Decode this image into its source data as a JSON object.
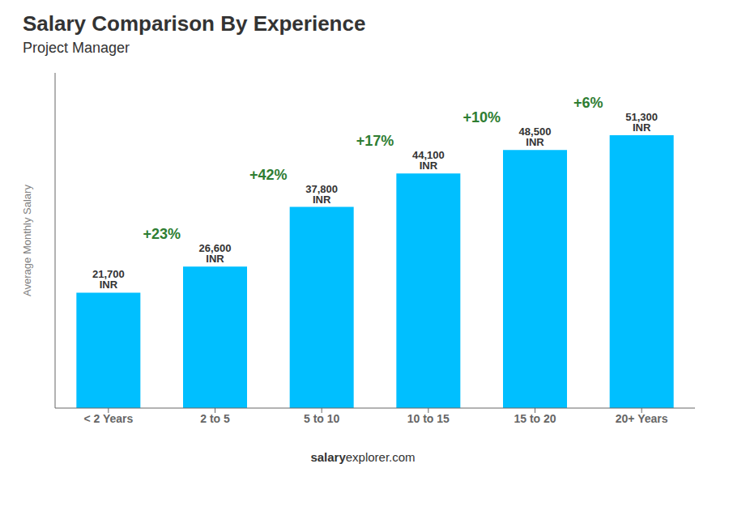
{
  "chart_data": {
    "type": "bar",
    "title": "Salary Comparison By Experience",
    "subtitle": "Project Manager",
    "categories": [
      "< 2 Years",
      "2 to 5",
      "5 to 10",
      "10 to 15",
      "15 to 20",
      "20+ Years"
    ],
    "values": [
      21700,
      26600,
      37800,
      44100,
      48500,
      51300
    ],
    "value_labels": [
      "21,700 INR",
      "26,600 INR",
      "37,800 INR",
      "44,100 INR",
      "48,500 INR",
      "51,300 INR"
    ],
    "data_labels": true,
    "annotations": [
      "+23%",
      "+42%",
      "+17%",
      "+10%",
      "+6%"
    ],
    "color": "#00bfff",
    "ylim": [
      0,
      63000
    ],
    "ylabel": "Average Monthly Salary",
    "tick_labels": "x",
    "grid": false,
    "footer": [
      "salary",
      "explorer.com"
    ]
  }
}
